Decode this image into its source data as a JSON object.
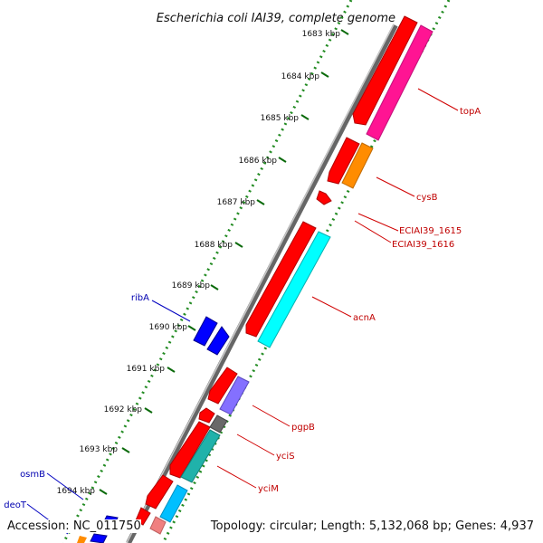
{
  "title": "Escherichia coli IAI39, complete genome",
  "ticks": [
    {
      "label": "1683 kbp"
    },
    {
      "label": "1684 kbp"
    },
    {
      "label": "1685 kbp"
    },
    {
      "label": "1686 kbp"
    },
    {
      "label": "1687 kbp"
    },
    {
      "label": "1688 kbp"
    },
    {
      "label": "1689 kbp"
    },
    {
      "label": "1690 kbp"
    },
    {
      "label": "1691 kbp"
    },
    {
      "label": "1692 kbp"
    },
    {
      "label": "1693 kbp"
    },
    {
      "label": "1694 kbp"
    }
  ],
  "genes": [
    {
      "name": "topA",
      "strand": "+",
      "color": "#ff0000",
      "cog_color": "#ff1493"
    },
    {
      "name": "cysB",
      "strand": "+",
      "color": "#ff0000",
      "cog_color": "#ff8c00"
    },
    {
      "name": "ECIAI39_1615",
      "strand": "+",
      "color": "#ff0000"
    },
    {
      "name": "ECIAI39_1616",
      "strand": "+",
      "color": "#ff0000"
    },
    {
      "name": "acnA",
      "strand": "+",
      "color": "#ff0000",
      "cog_color": "#00ffff"
    },
    {
      "name": "ribA",
      "strand": "-",
      "color": "#0000ff"
    },
    {
      "name": "pgpB",
      "strand": "+",
      "color": "#ff0000",
      "cog_color": "#8470ff"
    },
    {
      "name": "yciS",
      "strand": "+",
      "color": "#ff0000",
      "cog_color": "#696969"
    },
    {
      "name": "yciM",
      "strand": "+",
      "color": "#ff0000",
      "cog_color": "#20b2aa"
    },
    {
      "name": "osmB",
      "strand": "-",
      "color": "#0000ff"
    },
    {
      "name": "deoT",
      "strand": "-",
      "color": "#0000ff"
    }
  ],
  "colors": {
    "forward_cds": "#ff0000",
    "reverse_cds": "#0000ff",
    "backbone": "#888888",
    "gc_dots": "#228b22",
    "label_forward": "#c00000",
    "label_reverse": "#0000b0"
  },
  "footer": {
    "accession": "Accession: NC_011750",
    "topology": "Topology: circular; Length: 5,132,068 bp; Genes: 4,937"
  }
}
